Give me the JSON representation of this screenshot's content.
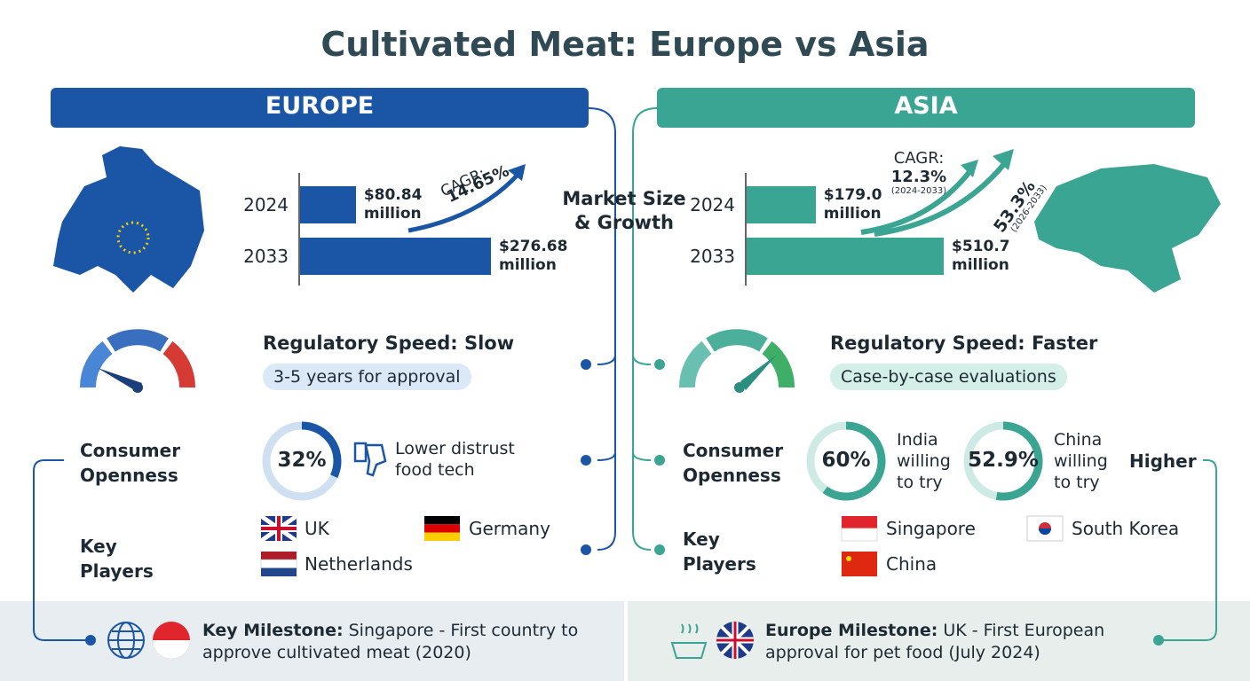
{
  "title": "Cultivated Meat: Europe vs Asia",
  "center_label": [
    "Market Size",
    "& Growth"
  ],
  "europe": {
    "header": "EUROPE",
    "market": {
      "categories": [
        "2024",
        "2033"
      ],
      "values": [
        80.84,
        276.68
      ],
      "value_labels": [
        "$80.84 million",
        "$276.68 million"
      ],
      "color": "#1a55a6"
    },
    "cagr": {
      "label": "CAGR:",
      "value": "14.65%"
    },
    "regulatory": {
      "title": "Regulatory Speed: Slow",
      "badge": "3-5 years for approval"
    },
    "consumer": {
      "label": "Consumer Openness",
      "donuts": [
        {
          "value": 32,
          "label": "32%"
        }
      ],
      "note": "Lower distrust food tech"
    },
    "players": {
      "label": "Key Players",
      "items": [
        "UK",
        "Germany",
        "Netherlands"
      ]
    }
  },
  "asia": {
    "header": "ASIA",
    "market": {
      "categories": [
        "2024",
        "2033"
      ],
      "values": [
        179.0,
        510.7
      ],
      "value_labels": [
        "$179.0 million",
        "$510.7 million"
      ],
      "color": "#3aa592"
    },
    "cagr": {
      "label": "CAGR:",
      "value": "12.3%",
      "period": "(2024-2033)"
    },
    "cagr2": {
      "value": "53.3%",
      "period": "(2026-2033)"
    },
    "regulatory": {
      "title": "Regulatory Speed: Faster",
      "badge": "Case-by-case evaluations"
    },
    "consumer": {
      "label": "Consumer Openness",
      "donuts": [
        {
          "value": 60,
          "label": "60%",
          "note": "India willing to try"
        },
        {
          "value": 52.9,
          "label": "52.9%",
          "note": "China willing to try"
        }
      ],
      "extra": "Higher"
    },
    "players": {
      "label": "Key Players",
      "items": [
        "Singapore",
        "South Korea",
        "China"
      ]
    }
  },
  "footer": {
    "left": {
      "bold": "Key Milestone:",
      "text": "Singapore - First country to approve cultivated meat (2020)"
    },
    "right": {
      "bold": "Europe Milestone:",
      "text": "UK - First European approval for pet food (July 2024)"
    }
  }
}
